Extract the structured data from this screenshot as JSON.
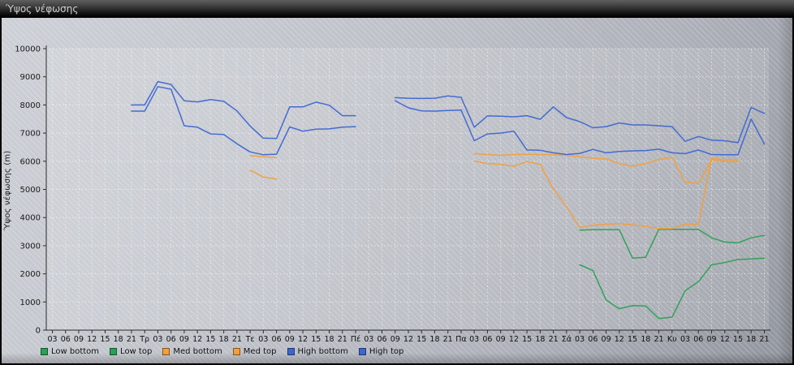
{
  "window": {
    "title": "Ύψος νέφωσης"
  },
  "chart_data": {
    "type": "line",
    "title": "Ύψος νέφωσης",
    "ylabel": "Ύψος νέφωσης (m)",
    "xlabel": "",
    "ylim": [
      0,
      10000
    ],
    "y_ticks": [
      0,
      1000,
      2000,
      3000,
      4000,
      5000,
      6000,
      7000,
      8000,
      9000,
      10000
    ],
    "grid": true,
    "legend_position": "bottom",
    "x_tick_labels": [
      "03",
      "06",
      "09",
      "12",
      "15",
      "18",
      "21",
      "Τρ",
      "03",
      "06",
      "09",
      "12",
      "15",
      "18",
      "21",
      "Τε",
      "03",
      "06",
      "09",
      "12",
      "15",
      "18",
      "21",
      "Πέ",
      "03",
      "06",
      "09",
      "12",
      "15",
      "18",
      "21",
      "Πα",
      "03",
      "06",
      "09",
      "12",
      "15",
      "18",
      "21",
      "Σά",
      "03",
      "06",
      "09",
      "12",
      "15",
      "18",
      "21",
      "Κυ",
      "03",
      "06",
      "09",
      "12",
      "15",
      "18",
      "21"
    ],
    "day_label_indices": [
      7,
      15,
      23,
      31,
      39,
      47
    ],
    "series": [
      {
        "name": "Low bottom",
        "color": "#2aa054",
        "values": [
          null,
          null,
          null,
          null,
          null,
          null,
          null,
          null,
          null,
          null,
          null,
          null,
          null,
          null,
          null,
          null,
          null,
          null,
          null,
          null,
          null,
          null,
          null,
          null,
          null,
          null,
          null,
          null,
          null,
          null,
          null,
          null,
          null,
          null,
          null,
          null,
          null,
          null,
          null,
          null,
          2320,
          2120,
          1070,
          760,
          870,
          860,
          410,
          460,
          1400,
          1720,
          2320,
          2400,
          2510,
          2530,
          2560
        ]
      },
      {
        "name": "Low top",
        "color": "#2aa054",
        "values": [
          null,
          null,
          null,
          null,
          null,
          null,
          null,
          null,
          null,
          null,
          null,
          null,
          null,
          null,
          null,
          null,
          null,
          null,
          null,
          null,
          null,
          null,
          null,
          null,
          null,
          null,
          null,
          null,
          null,
          null,
          null,
          null,
          null,
          null,
          null,
          null,
          null,
          null,
          null,
          null,
          3550,
          3570,
          3570,
          3570,
          2560,
          2590,
          3580,
          3580,
          3580,
          3580,
          3280,
          3130,
          3100,
          3280,
          3370
        ]
      },
      {
        "name": "Med bottom",
        "color": "#f29f3c",
        "values": [
          null,
          null,
          null,
          null,
          null,
          null,
          null,
          null,
          null,
          null,
          null,
          null,
          null,
          null,
          null,
          5680,
          5440,
          5370,
          null,
          null,
          null,
          null,
          null,
          null,
          null,
          null,
          null,
          null,
          null,
          null,
          null,
          null,
          6010,
          5920,
          5890,
          5820,
          5990,
          5890,
          5010,
          4380,
          3640,
          3730,
          3760,
          3780,
          3740,
          3680,
          3610,
          3610,
          3760,
          3760,
          6110,
          6050,
          6050,
          null,
          null
        ]
      },
      {
        "name": "Med top",
        "color": "#f29f3c",
        "values": [
          null,
          null,
          null,
          null,
          null,
          null,
          null,
          null,
          null,
          null,
          null,
          null,
          null,
          null,
          null,
          6200,
          6160,
          6130,
          null,
          null,
          null,
          null,
          null,
          null,
          null,
          null,
          null,
          null,
          null,
          null,
          null,
          null,
          6270,
          6240,
          6210,
          6240,
          6250,
          6240,
          6230,
          6210,
          6160,
          6110,
          6080,
          5920,
          5820,
          5920,
          6060,
          6140,
          5250,
          5220,
          6060,
          5990,
          5990,
          null,
          null
        ]
      },
      {
        "name": "High bottom",
        "color": "#3c66d1",
        "values": [
          null,
          null,
          null,
          null,
          null,
          null,
          7780,
          7780,
          8650,
          8560,
          7260,
          7210,
          6970,
          6950,
          6620,
          6330,
          6230,
          6250,
          7220,
          7070,
          7140,
          7150,
          7210,
          7230,
          null,
          null,
          8150,
          7900,
          7790,
          7780,
          7800,
          7820,
          6730,
          6970,
          7000,
          7070,
          6400,
          6390,
          6300,
          6240,
          6280,
          6420,
          6300,
          6350,
          6370,
          6380,
          6430,
          6300,
          6270,
          6400,
          6240,
          6230,
          6230,
          7500,
          6610
        ]
      },
      {
        "name": "High top",
        "color": "#3c66d1",
        "values": [
          null,
          null,
          null,
          null,
          null,
          null,
          8000,
          8000,
          8830,
          8730,
          8150,
          8110,
          8190,
          8130,
          7790,
          7250,
          6820,
          6810,
          7930,
          7930,
          8100,
          7990,
          7620,
          7620,
          null,
          null,
          8260,
          8240,
          8230,
          8240,
          8320,
          8270,
          7210,
          7610,
          7600,
          7580,
          7620,
          7490,
          7930,
          7550,
          7410,
          7190,
          7230,
          7360,
          7290,
          7290,
          7260,
          7230,
          6710,
          6880,
          6750,
          6730,
          6660,
          7910,
          7700
        ]
      }
    ]
  }
}
